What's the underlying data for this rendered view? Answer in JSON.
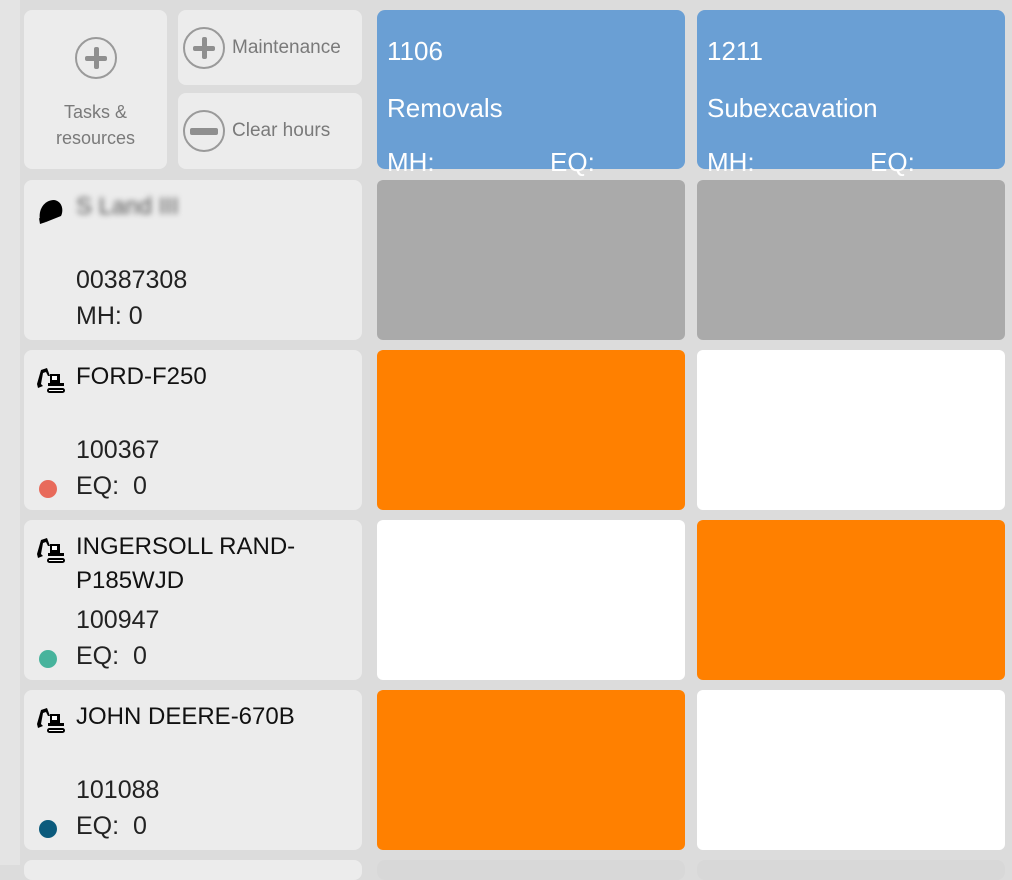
{
  "toolbar": {
    "tasks_label": "Tasks & resources",
    "maintenance_label": "Maintenance",
    "clear_hours_label": "Clear hours"
  },
  "tasks": [
    {
      "code": "1106",
      "name": "Removals",
      "mh_label": "MH:",
      "eq_label": "EQ:"
    },
    {
      "code": "1211",
      "name": "Subexcavation",
      "mh_label": "MH:",
      "eq_label": "EQ:"
    }
  ],
  "resources": [
    {
      "type": "worker",
      "icon": "hard-hat-icon",
      "name": "S Land III",
      "number": "00387308",
      "value": "MH: 0",
      "cells": [
        "gray",
        "gray"
      ]
    },
    {
      "type": "equipment",
      "icon": "excavator-icon",
      "name": "FORD-F250",
      "number": "100367",
      "value": "EQ:  0",
      "dot_color": "#e86a5a",
      "cells": [
        "orange",
        "white"
      ]
    },
    {
      "type": "equipment",
      "icon": "excavator-icon",
      "name": "INGERSOLL RAND-P185WJD",
      "number": "100947",
      "value": "EQ:  0",
      "dot_color": "#47b39c",
      "cells": [
        "white",
        "orange"
      ]
    },
    {
      "type": "equipment",
      "icon": "excavator-icon",
      "name": "JOHN DEERE-670B",
      "number": "101088",
      "value": "EQ:  0",
      "dot_color": "#0b5a7c",
      "cells": [
        "orange",
        "white"
      ]
    }
  ],
  "colors": {
    "task_header": "#6a9fd4",
    "gray": "#aaaaaa",
    "orange": "#ff8000",
    "white": "#ffffff"
  }
}
